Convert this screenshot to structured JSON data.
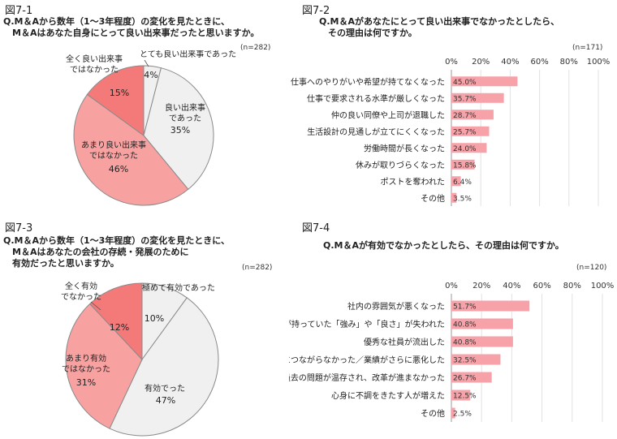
{
  "charts": [
    {
      "figure_label": "図7-1",
      "question": "Q.M＆Aから数年（1～3年程度）の変化を見たときに、\n　M＆Aはあなた自身にとって良い出来事だったと思いますか。",
      "n": "(n=282)",
      "chart_data": {
        "type": "pie",
        "slices": [
          {
            "label": "とても良い出来事であった",
            "value": 4,
            "value_label": "4%",
            "color": "#f0f0f0"
          },
          {
            "label": "良い出来事\nであった",
            "value": 35,
            "value_label": "35%",
            "color": "#f0f0f0"
          },
          {
            "label": "あまり良い出来事\nではなかった",
            "value": 46,
            "value_label": "46%",
            "color": "#f7a1a1"
          },
          {
            "label": "全く良い出来事\nではなかった",
            "value": 15,
            "value_label": "15%",
            "color": "#f47a7a"
          }
        ]
      }
    },
    {
      "figure_label": "図7-2",
      "question": "Q.M＆Aがあなたにとって良い出来事でなかったとしたら、\n　その理由は何ですか。",
      "n": "(n=171)",
      "chart_data": {
        "type": "bar",
        "orientation": "horizontal",
        "categories": [
          "仕事へのやりがいや希望が持てなくなった",
          "仕事で要求される水準が厳しくなった",
          "仲の良い同僚や上司が退職した",
          "生活設計の見通しが立てにくくなった",
          "労働時間が長くなった",
          "休みが取りづらくなった",
          "ポストを奪われた",
          "その他"
        ],
        "values": [
          45.0,
          35.7,
          28.7,
          25.7,
          24.0,
          15.8,
          6.4,
          3.5
        ],
        "value_labels": [
          "45.0%",
          "35.7%",
          "28.7%",
          "25.7%",
          "24.0%",
          "15.8%",
          "6.4%",
          "3.5%"
        ],
        "xlim": [
          0,
          100
        ],
        "ticks": [
          "0%",
          "20%",
          "40%",
          "60%",
          "80%",
          "100%"
        ],
        "bar_color": "#f7a1a8"
      }
    },
    {
      "figure_label": "図7-3",
      "question": "Q.M＆Aから数年（1～3年程度）の変化を見たときに、\n　M＆Aはあなたの会社の存続・発展のために\n　有効だったと思いますか。",
      "n": "(n=282)",
      "chart_data": {
        "type": "pie",
        "slices": [
          {
            "label": "極めて有効であった",
            "value": 10,
            "value_label": "10%",
            "color": "#f0f0f0"
          },
          {
            "label": "有効でった",
            "value": 47,
            "value_label": "47%",
            "color": "#f0f0f0"
          },
          {
            "label": "あまり有効\nではなかった",
            "value": 31,
            "value_label": "31%",
            "color": "#f7a1a1"
          },
          {
            "label": "全く有効\nでなかった",
            "value": 12,
            "value_label": "12%",
            "color": "#f47a7a"
          }
        ]
      }
    },
    {
      "figure_label": "図7-4",
      "question": "Q.M＆Aが有効でなかったとしたら、その理由は何ですか。",
      "n": "(n=120)",
      "chart_data": {
        "type": "bar",
        "orientation": "horizontal",
        "categories": [
          "社内の雰囲気が悪くなった",
          "それまで会社が持っていた「強み」や「良さ」が失われた",
          "優秀な社員が流出した",
          "業績の改善につながらなかった／業績がさらに悪化した",
          "過去の問題が温存され、改革が進まなかった",
          "心身に不調をきたす人が増えた",
          "その他"
        ],
        "values": [
          51.7,
          40.8,
          40.8,
          32.5,
          26.7,
          12.5,
          2.5
        ],
        "value_labels": [
          "51.7%",
          "40.8%",
          "40.8%",
          "32.5%",
          "26.7%",
          "12.5%",
          "2.5%"
        ],
        "xlim": [
          0,
          100
        ],
        "ticks": [
          "0%",
          "20%",
          "40%",
          "60%",
          "80%",
          "100%"
        ],
        "bar_color": "#f7a1a8"
      }
    }
  ]
}
